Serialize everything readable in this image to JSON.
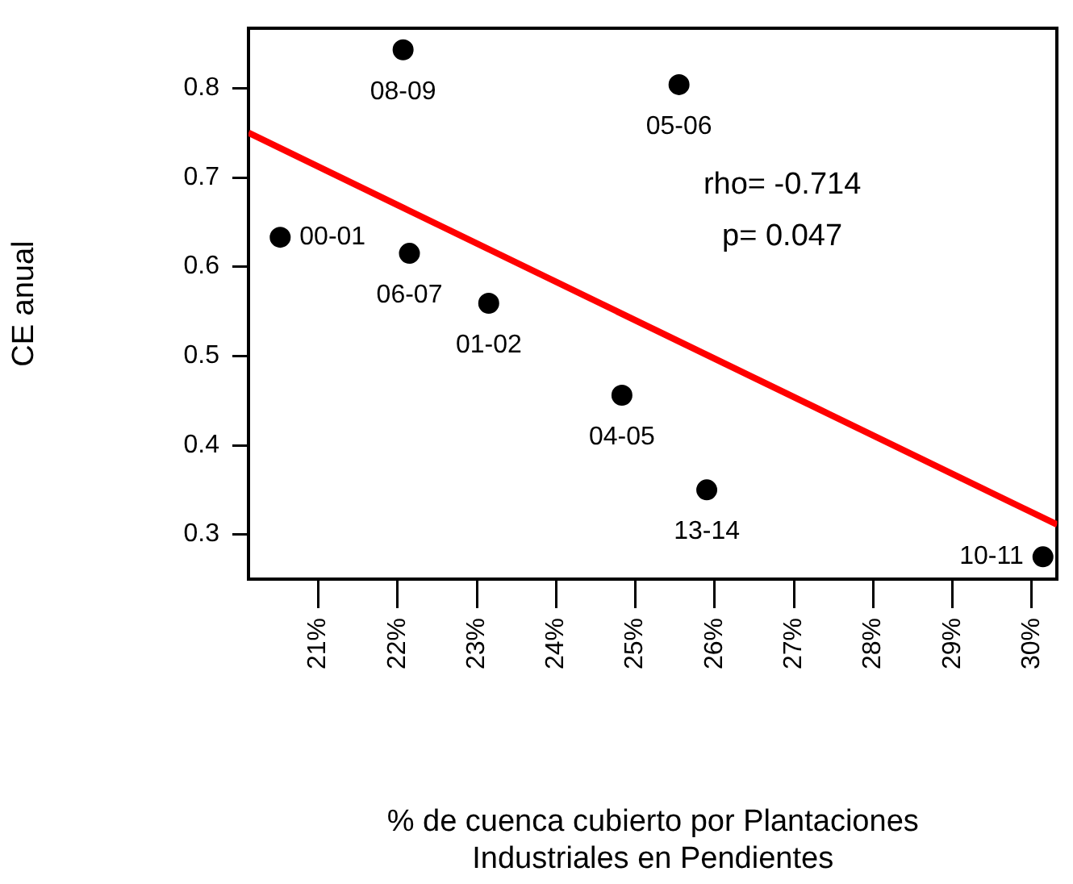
{
  "chart_data": {
    "type": "scatter",
    "xlabel": "% de cuenca cubierto por Plantaciones\nIndustriales en Pendientes",
    "ylabel": "CE anual",
    "xlim": [
      20.12,
      30.32
    ],
    "ylim": [
      0.25,
      0.867
    ],
    "xticks": [
      {
        "value": 21,
        "label": "21%"
      },
      {
        "value": 22,
        "label": "22%"
      },
      {
        "value": 23,
        "label": "23%"
      },
      {
        "value": 24,
        "label": "24%"
      },
      {
        "value": 25,
        "label": "25%"
      },
      {
        "value": 26,
        "label": "26%"
      },
      {
        "value": 27,
        "label": "27%"
      },
      {
        "value": 28,
        "label": "28%"
      },
      {
        "value": 29,
        "label": "29%"
      },
      {
        "value": 30,
        "label": "30%"
      }
    ],
    "yticks": [
      0.3,
      0.4,
      0.5,
      0.6,
      0.7,
      0.8
    ],
    "grid": false,
    "legend": false,
    "marker": "circle",
    "annotations": [
      "rho= -0.714",
      "p= 0.047"
    ],
    "series": [
      {
        "type": "line",
        "marker": "none",
        "color": "#ff0000",
        "x": [
          20.12,
          30.32
        ],
        "values": [
          0.75,
          0.311
        ]
      },
      {
        "color": "#000000",
        "x": [
          22.07,
          25.55,
          20.52,
          22.15,
          23.15,
          24.83,
          25.9,
          30.14
        ],
        "values": [
          0.843,
          0.804,
          0.633,
          0.615,
          0.559,
          0.456,
          0.35,
          0.275
        ],
        "value_labels": [
          "08-09",
          "05-06",
          "00-01",
          "06-07",
          "01-02",
          "04-05",
          "13-14",
          "10-11"
        ]
      }
    ]
  }
}
